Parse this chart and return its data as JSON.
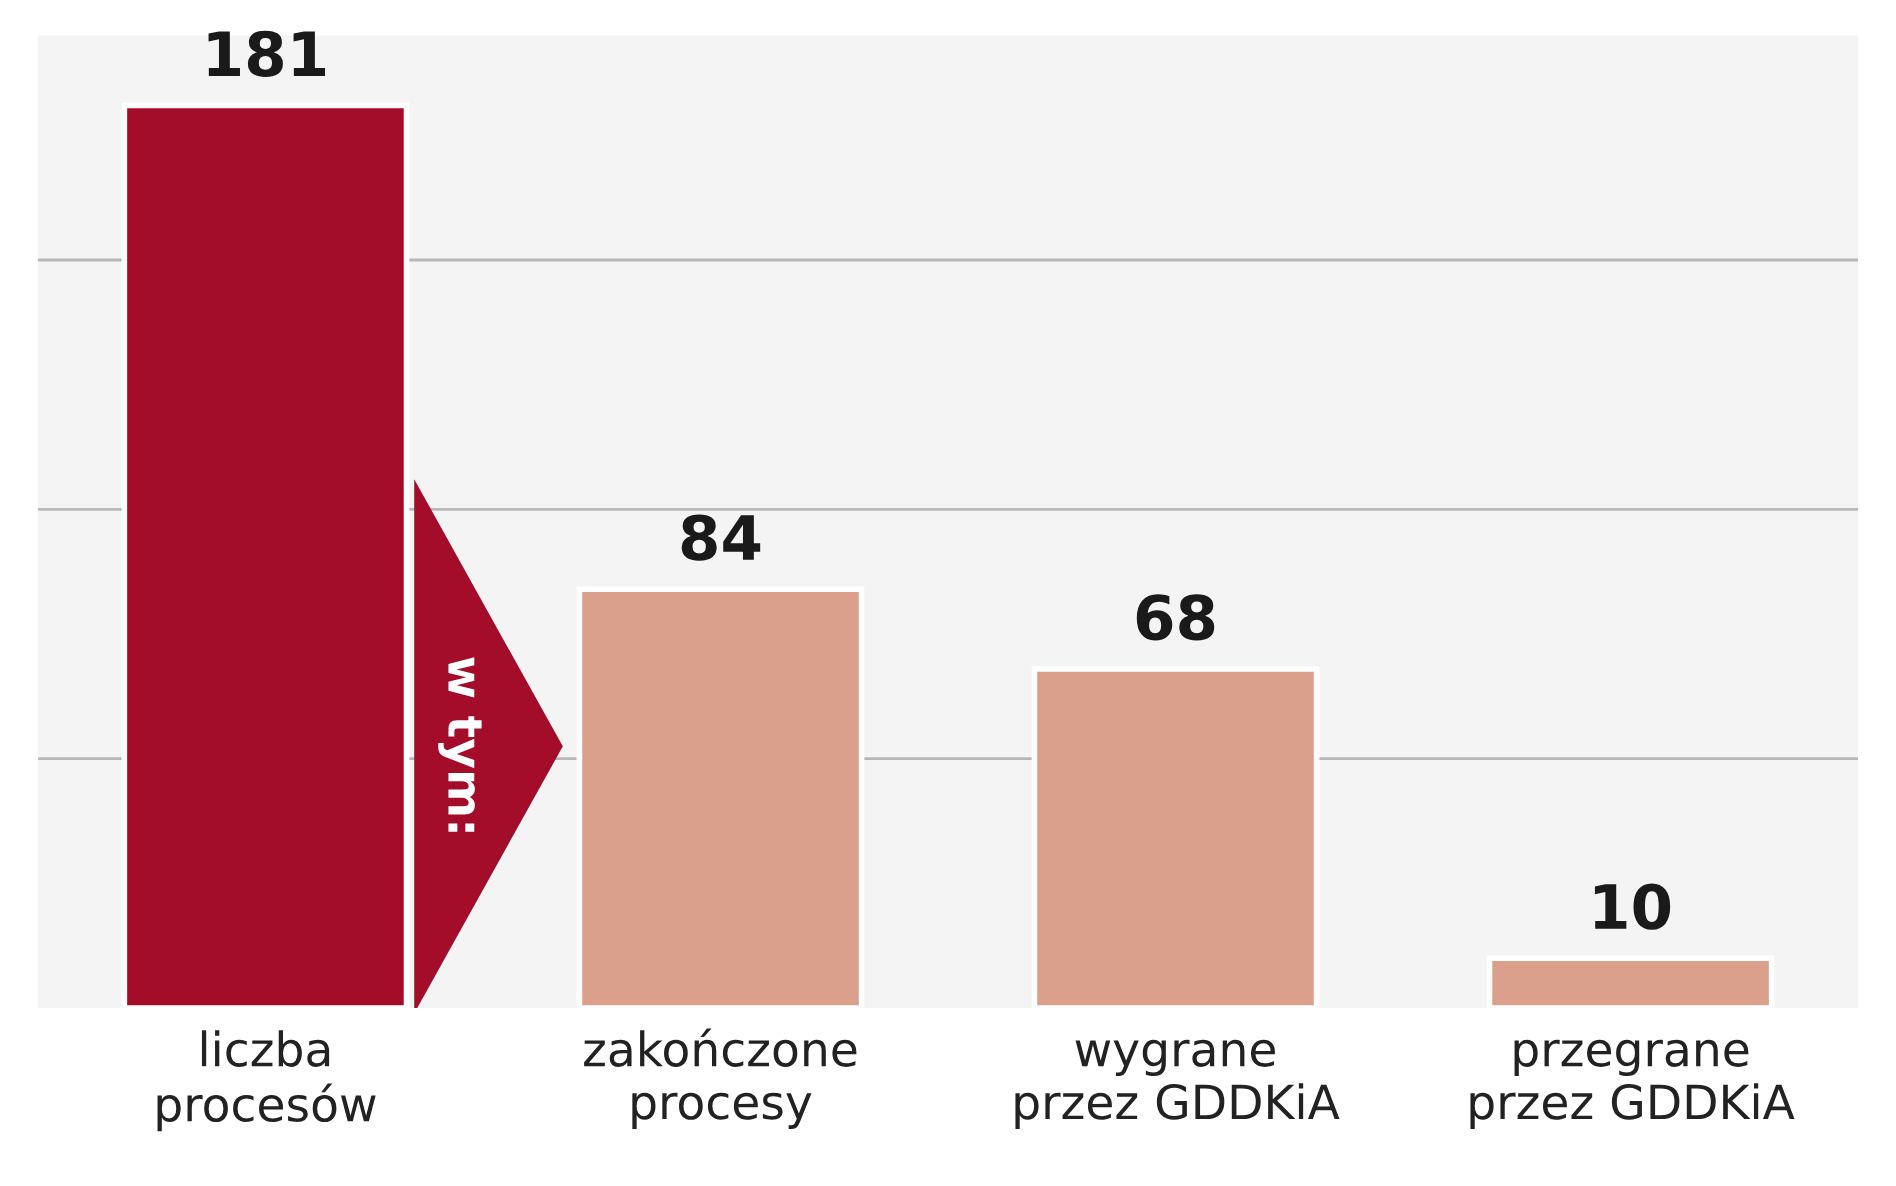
{
  "chart_data": {
    "type": "bar",
    "categories": [
      "liczba\nprocesów",
      "zakończone\nprocesy",
      "wygrane\nprzez GDDKiA",
      "przegrane\nprzez GDDKiA"
    ],
    "values": [
      181,
      84,
      68,
      10
    ],
    "colors": [
      "#a30d2a",
      "#dba08c",
      "#dba08c",
      "#dba08c"
    ],
    "data_labels": true,
    "ylim": [
      0,
      195
    ],
    "yticks": [
      {
        "value": 50,
        "label": null
      },
      {
        "value": 100,
        "label": null
      },
      {
        "value": 150,
        "label": null
      }
    ],
    "grid": "y",
    "tick_labels": "x",
    "annotations": [
      "w tym:"
    ]
  }
}
